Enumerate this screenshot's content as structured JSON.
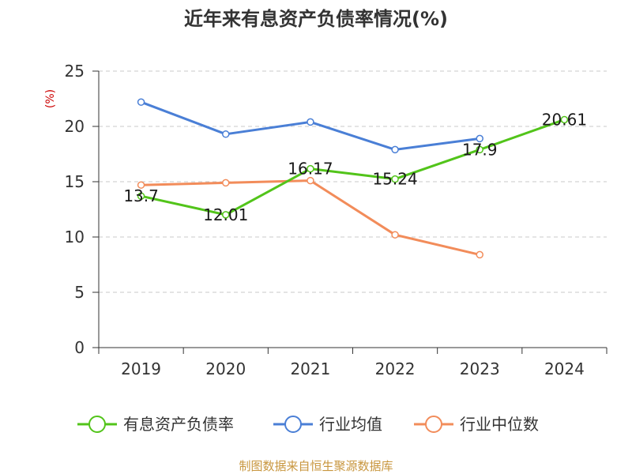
{
  "chart_data": {
    "type": "line",
    "title": "近年来有息资产负债率情况(%)",
    "ylabel": "(%)",
    "xlabel": "",
    "categories": [
      "2019",
      "2020",
      "2021",
      "2022",
      "2023",
      "2024"
    ],
    "ylim": [
      0,
      25
    ],
    "yticks": [
      0,
      5,
      10,
      15,
      20,
      25
    ],
    "grid": true,
    "legend_position": "bottom",
    "series": [
      {
        "name": "有息资产负债率",
        "color": "#52c41a",
        "values": [
          13.7,
          12.01,
          16.17,
          15.24,
          17.9,
          20.61
        ],
        "labels": [
          "13.7",
          "12.01",
          "16.17",
          "15.24",
          "17.9",
          "20.61"
        ]
      },
      {
        "name": "行业均值",
        "color": "#4a7fd6",
        "values": [
          22.2,
          19.3,
          20.4,
          17.9,
          18.9,
          null
        ]
      },
      {
        "name": "行业中位数",
        "color": "#f28c5a",
        "values": [
          14.7,
          14.9,
          15.1,
          10.2,
          8.4,
          null
        ]
      }
    ],
    "source": "制图数据来自恒生聚源数据库"
  }
}
